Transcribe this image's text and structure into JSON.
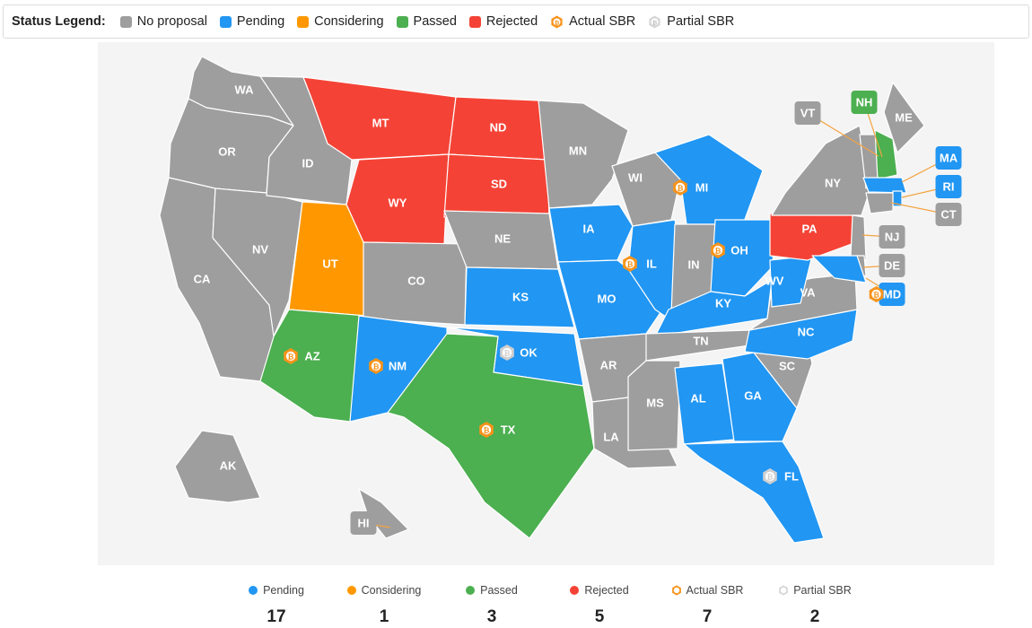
{
  "legend": {
    "title": "Status Legend:",
    "items": [
      {
        "label": "No proposal",
        "color": "#9e9e9e",
        "kind": "swatch"
      },
      {
        "label": "Pending",
        "color": "#2196f3",
        "kind": "swatch"
      },
      {
        "label": "Considering",
        "color": "#ff9800",
        "kind": "swatch"
      },
      {
        "label": "Passed",
        "color": "#4caf50",
        "kind": "swatch"
      },
      {
        "label": "Rejected",
        "color": "#f44336",
        "kind": "swatch"
      },
      {
        "label": "Actual SBR",
        "color": "#f7931a",
        "kind": "bitcoin-icon"
      },
      {
        "label": "Partial SBR",
        "color": "#cfcfcf",
        "kind": "bitcoin-outline-icon"
      }
    ]
  },
  "colors": {
    "none": "#9e9e9e",
    "pending": "#2196f3",
    "considering": "#ff9800",
    "passed": "#4caf50",
    "rejected": "#f44336",
    "actual_sbr": "#f7931a",
    "partial_sbr": "#cfcfcf"
  },
  "states": [
    {
      "abbr": "WA",
      "status": "none"
    },
    {
      "abbr": "OR",
      "status": "none"
    },
    {
      "abbr": "CA",
      "status": "none"
    },
    {
      "abbr": "NV",
      "status": "none"
    },
    {
      "abbr": "ID",
      "status": "none"
    },
    {
      "abbr": "MT",
      "status": "rejected"
    },
    {
      "abbr": "WY",
      "status": "rejected"
    },
    {
      "abbr": "UT",
      "status": "considering"
    },
    {
      "abbr": "AZ",
      "status": "passed",
      "sbr": "actual"
    },
    {
      "abbr": "CO",
      "status": "none"
    },
    {
      "abbr": "NM",
      "status": "pending",
      "sbr": "actual"
    },
    {
      "abbr": "ND",
      "status": "rejected"
    },
    {
      "abbr": "SD",
      "status": "rejected"
    },
    {
      "abbr": "NE",
      "status": "none"
    },
    {
      "abbr": "KS",
      "status": "pending"
    },
    {
      "abbr": "OK",
      "status": "pending",
      "sbr": "partial"
    },
    {
      "abbr": "TX",
      "status": "passed",
      "sbr": "actual"
    },
    {
      "abbr": "MN",
      "status": "none"
    },
    {
      "abbr": "IA",
      "status": "pending"
    },
    {
      "abbr": "MO",
      "status": "pending"
    },
    {
      "abbr": "AR",
      "status": "none"
    },
    {
      "abbr": "LA",
      "status": "none"
    },
    {
      "abbr": "WI",
      "status": "none"
    },
    {
      "abbr": "IL",
      "status": "pending",
      "sbr": "actual"
    },
    {
      "abbr": "MI",
      "status": "pending",
      "sbr": "actual"
    },
    {
      "abbr": "IN",
      "status": "none"
    },
    {
      "abbr": "OH",
      "status": "pending",
      "sbr": "actual"
    },
    {
      "abbr": "KY",
      "status": "pending"
    },
    {
      "abbr": "TN",
      "status": "none"
    },
    {
      "abbr": "MS",
      "status": "none"
    },
    {
      "abbr": "AL",
      "status": "pending"
    },
    {
      "abbr": "GA",
      "status": "pending"
    },
    {
      "abbr": "FL",
      "status": "pending",
      "sbr": "partial"
    },
    {
      "abbr": "SC",
      "status": "none"
    },
    {
      "abbr": "NC",
      "status": "pending"
    },
    {
      "abbr": "VA",
      "status": "none"
    },
    {
      "abbr": "WV",
      "status": "pending"
    },
    {
      "abbr": "PA",
      "status": "rejected"
    },
    {
      "abbr": "NY",
      "status": "none"
    },
    {
      "abbr": "ME",
      "status": "none"
    },
    {
      "abbr": "AK",
      "status": "none"
    },
    {
      "abbr": "HI",
      "status": "none"
    },
    {
      "abbr": "VT",
      "status": "none"
    },
    {
      "abbr": "NH",
      "status": "passed"
    },
    {
      "abbr": "MA",
      "status": "pending"
    },
    {
      "abbr": "RI",
      "status": "pending"
    },
    {
      "abbr": "CT",
      "status": "none"
    },
    {
      "abbr": "NJ",
      "status": "none"
    },
    {
      "abbr": "DE",
      "status": "none"
    },
    {
      "abbr": "MD",
      "status": "pending",
      "sbr": "actual"
    }
  ],
  "stats": [
    {
      "label": "Pending",
      "value": "17",
      "color": "#2196f3",
      "kind": "dot"
    },
    {
      "label": "Considering",
      "value": "1",
      "color": "#ff9800",
      "kind": "dot"
    },
    {
      "label": "Passed",
      "value": "3",
      "color": "#4caf50",
      "kind": "dot"
    },
    {
      "label": "Rejected",
      "value": "5",
      "color": "#f44336",
      "kind": "dot"
    },
    {
      "label": "Actual SBR",
      "value": "7",
      "color": "#f7931a",
      "kind": "bitcoin-icon"
    },
    {
      "label": "Partial SBR",
      "value": "2",
      "color": "#cfcfcf",
      "kind": "bitcoin-outline-icon"
    }
  ]
}
